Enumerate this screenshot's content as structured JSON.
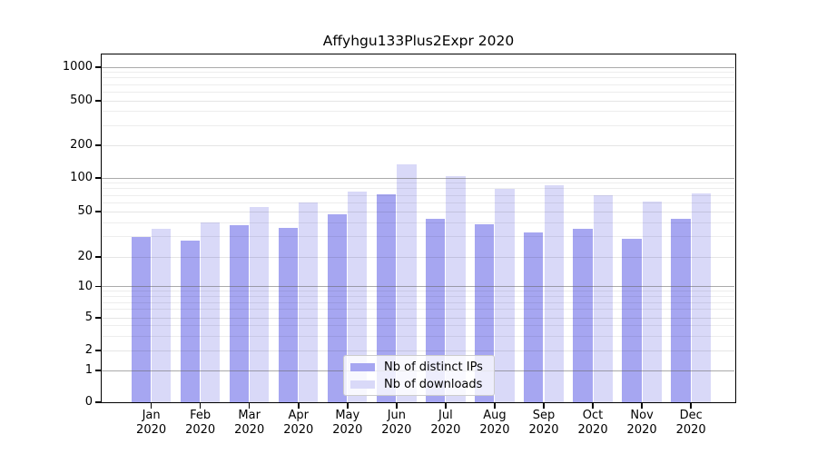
{
  "title": "Affyhgu133Plus2Expr 2020",
  "colors": {
    "bar_distinct_ips": "#a6a6f1",
    "bar_downloads": "#d9d9f8",
    "grid_major": "#b0b0b0",
    "grid_minor": "#ebebeb",
    "axis": "#000000",
    "legend_border": "#cccccc"
  },
  "legend": {
    "items": [
      {
        "label": "Nb of distinct IPs",
        "swatch_color": "#a6a6f1"
      },
      {
        "label": "Nb of downloads",
        "swatch_color": "#d9d9f8"
      }
    ]
  },
  "chart_data": {
    "type": "bar",
    "title": "Affyhgu133Plus2Expr 2020",
    "categories": [
      "Jan 2020",
      "Feb 2020",
      "Mar 2020",
      "Apr 2020",
      "May 2020",
      "Jun 2020",
      "Jul 2020",
      "Aug 2020",
      "Sep 2020",
      "Oct 2020",
      "Nov 2020",
      "Dec 2020"
    ],
    "x_tick_months": [
      "Jan",
      "Feb",
      "Mar",
      "Apr",
      "May",
      "Jun",
      "Jul",
      "Aug",
      "Sep",
      "Oct",
      "Nov",
      "Dec"
    ],
    "x_tick_year": "2020",
    "series": [
      {
        "name": "Nb of distinct IPs",
        "color": "#a6a6f1",
        "values": [
          30,
          28,
          38,
          36,
          47,
          72,
          43,
          39,
          33,
          35,
          29,
          43
        ]
      },
      {
        "name": "Nb of downloads",
        "color": "#d9d9f8",
        "values": [
          35,
          40,
          55,
          60,
          76,
          133,
          103,
          80,
          86,
          70,
          62,
          73
        ]
      }
    ],
    "xlabel": "",
    "ylabel": "",
    "yaxis": {
      "scale": "symlog",
      "tick_values": [
        0,
        1,
        2,
        5,
        10,
        20,
        50,
        100,
        200,
        500,
        1000
      ],
      "tick_labels": [
        "0",
        "1",
        "2",
        "5",
        "10",
        "20",
        "50",
        "100",
        "200",
        "500",
        "1000"
      ],
      "ylim": [
        0,
        1000
      ]
    },
    "grid": true,
    "legend_position": "lower-center"
  }
}
